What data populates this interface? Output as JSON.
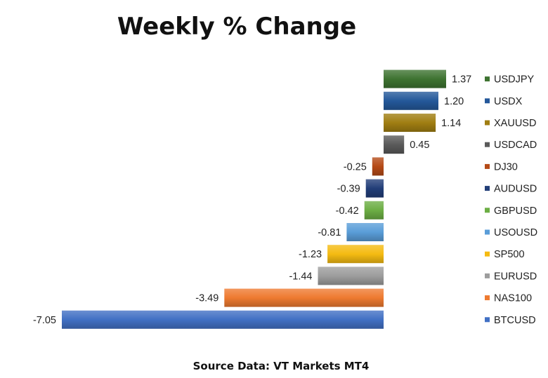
{
  "chart_data": {
    "type": "bar",
    "orientation": "horizontal",
    "title": "Weekly % Change",
    "source": "Source Data: VT Markets MT4",
    "categories": [
      "USDJPY",
      "USDX",
      "XAUUSD",
      "USDCAD",
      "DJ30",
      "AUDUSD",
      "GBPUSD",
      "USOUSD",
      "SP500",
      "EURUSD",
      "NAS100",
      "BTCUSD"
    ],
    "values": [
      1.37,
      1.2,
      1.14,
      0.45,
      -0.25,
      -0.39,
      -0.42,
      -0.81,
      -1.23,
      -1.44,
      -3.49,
      -7.05
    ],
    "value_labels": [
      "1.37",
      "1.20",
      "1.14",
      "0.45",
      "-0.25",
      "-0.39",
      "-0.42",
      "-0.81",
      "-1.23",
      "-1.44",
      "-3.49",
      "-7.05"
    ],
    "colors": [
      "#3e7331",
      "#24589a",
      "#a07e12",
      "#5a5a5a",
      "#b54a17",
      "#223e78",
      "#6cae44",
      "#5a9dd8",
      "#f5bb12",
      "#9d9d9d",
      "#ee7a30",
      "#4170c4"
    ],
    "xlim": [
      -7.05,
      1.37
    ],
    "legend": "right",
    "grid": false
  }
}
